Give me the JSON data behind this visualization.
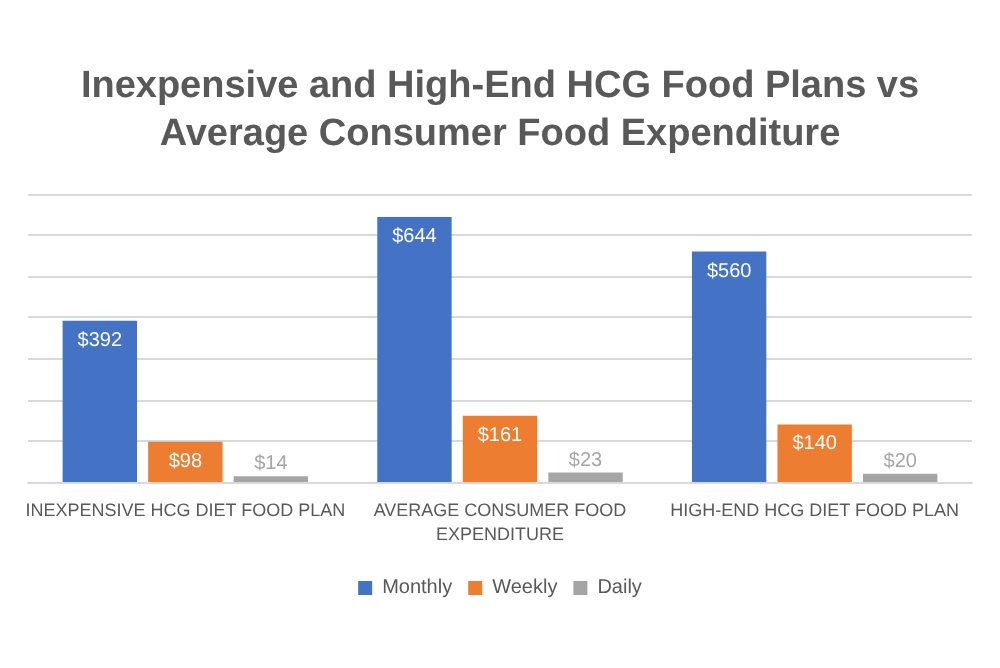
{
  "chart_data": {
    "type": "bar",
    "title": "Inexpensive and High-End HCG Food Plans vs\nAverage Consumer Food Expenditure",
    "categories": [
      "INEXPENSIVE HCG DIET FOOD PLAN",
      "AVERAGE CONSUMER FOOD\nEXPENDITURE",
      "HIGH-END HCG DIET FOOD PLAN"
    ],
    "series": [
      {
        "name": "Monthly",
        "color": "#4472c4",
        "values": [
          392,
          644,
          560
        ],
        "value_labels": [
          "$392",
          "$644",
          "$560"
        ]
      },
      {
        "name": "Weekly",
        "color": "#ed7d31",
        "values": [
          98,
          161,
          140
        ],
        "value_labels": [
          "$98",
          "$161",
          "$140"
        ]
      },
      {
        "name": "Daily",
        "color": "#a5a5a5",
        "values": [
          14,
          23,
          20
        ],
        "value_labels": [
          "$14",
          "$23",
          "$20"
        ]
      }
    ],
    "ylim": [
      0,
      700
    ],
    "yticks": [
      {
        "value": 0,
        "label": null
      },
      {
        "value": 100,
        "label": null
      },
      {
        "value": 200,
        "label": null
      },
      {
        "value": 300,
        "label": null
      },
      {
        "value": 400,
        "label": null
      },
      {
        "value": 500,
        "label": null
      },
      {
        "value": 600,
        "label": null
      },
      {
        "value": 700,
        "label": null
      }
    ],
    "grid": "y",
    "legend": "bottom"
  }
}
